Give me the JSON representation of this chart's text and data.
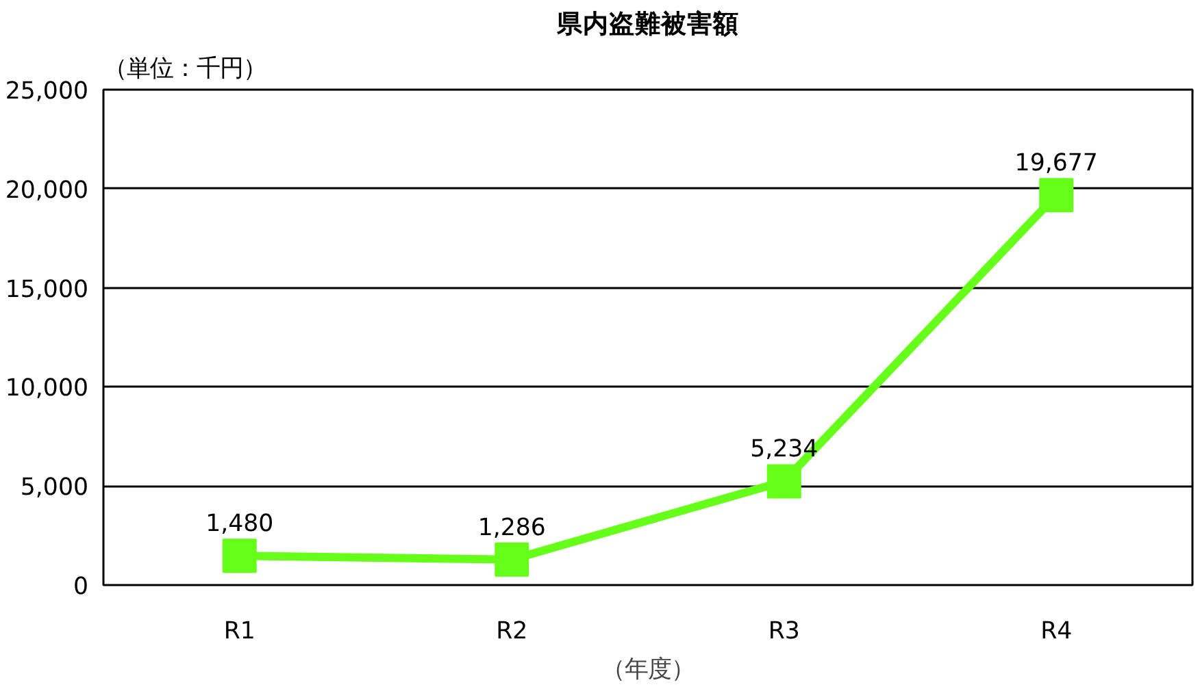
{
  "chart_data": {
    "type": "line",
    "title": "県内盗難被害額",
    "ylabel": "（単位：千円）",
    "xlabel": "（年度）",
    "categories": [
      "R1",
      "R2",
      "R3",
      "R4"
    ],
    "series": [
      {
        "color": "#66ff1a",
        "values": [
          1480,
          1286,
          5234,
          19677
        ],
        "value_labels": [
          "1,480",
          "1,286",
          "5,234",
          "19,677"
        ]
      }
    ],
    "ylim": [
      0,
      25000
    ],
    "yticks": [
      {
        "value": 0,
        "label": "0"
      },
      {
        "value": 5000,
        "label": "5,000"
      },
      {
        "value": 10000,
        "label": "10,000"
      },
      {
        "value": 15000,
        "label": "15,000"
      },
      {
        "value": 20000,
        "label": "20,000"
      },
      {
        "value": 25000,
        "label": "25,000"
      }
    ],
    "grid": "y",
    "marker": "square",
    "line_style": "solid"
  }
}
